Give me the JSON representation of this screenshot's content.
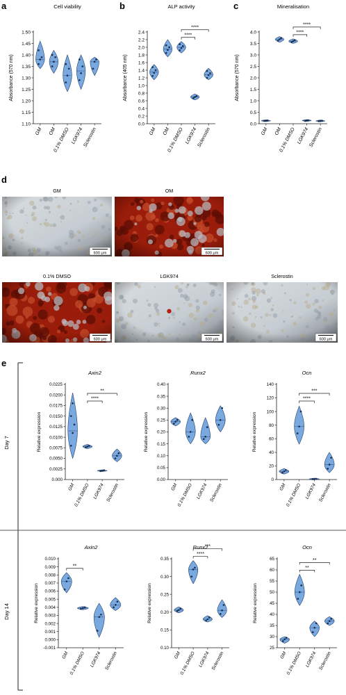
{
  "panel_letters": {
    "a": "a",
    "b": "b",
    "c": "c",
    "d": "d",
    "e": "e"
  },
  "colors": {
    "violin_fill": "#7aa9e0",
    "violin_stroke": "#1f3f70",
    "dot": "#1b2f50",
    "axis": "#222222",
    "alp_red": "#b12010",
    "plain_bg": "#cdd2d6"
  },
  "chart_data": [
    {
      "id": "a",
      "type": "violin",
      "title": "Cell viability",
      "ylabel": "Absorbance (570 nm)",
      "categories": [
        "GM",
        "OM",
        "0.1% DMSO",
        "LGK974",
        "Sclerostin"
      ],
      "ylim": [
        1.1,
        1.5
      ],
      "yticks": [
        1.1,
        1.15,
        1.2,
        1.25,
        1.3,
        1.35,
        1.4,
        1.45,
        1.5
      ],
      "ytick_labels": [
        "1.10",
        "1.15",
        "1.20",
        "1.25",
        "1.30",
        "1.35",
        "1.40",
        "1.45",
        "1.50"
      ],
      "groups": [
        {
          "min": 1.34,
          "max": 1.46,
          "median": 1.38,
          "points": [
            1.36,
            1.38,
            1.39,
            1.42
          ]
        },
        {
          "min": 1.32,
          "max": 1.42,
          "median": 1.37,
          "points": [
            1.35,
            1.37,
            1.39,
            1.4
          ]
        },
        {
          "min": 1.24,
          "max": 1.4,
          "median": 1.31,
          "points": [
            1.28,
            1.31,
            1.34,
            1.36
          ]
        },
        {
          "min": 1.25,
          "max": 1.4,
          "median": 1.33,
          "points": [
            1.29,
            1.32,
            1.35,
            1.38
          ]
        },
        {
          "min": 1.31,
          "max": 1.39,
          "median": 1.37,
          "points": [
            1.34,
            1.37,
            1.38
          ]
        }
      ],
      "brackets": []
    },
    {
      "id": "b",
      "type": "violin",
      "title": "ALP activity",
      "ylabel": "Absorbance (405 nm)",
      "categories": [
        "GM",
        "OM",
        "0.1% DMSO",
        "LGK974",
        "Sclerostin"
      ],
      "ylim": [
        0,
        2.4
      ],
      "yticks": [
        0,
        0.2,
        0.4,
        0.6,
        0.8,
        1.0,
        1.2,
        1.4,
        1.6,
        1.8,
        2.0,
        2.2,
        2.4
      ],
      "ytick_labels": [
        "0.0",
        "0.2",
        "0.4",
        "0.6",
        "0.8",
        "1.0",
        "1.2",
        "1.4",
        "1.6",
        "1.8",
        "2.0",
        "2.2",
        "2.4"
      ],
      "groups": [
        {
          "min": 1.15,
          "max": 1.55,
          "median": 1.35,
          "points": [
            1.25,
            1.33,
            1.4,
            1.48
          ]
        },
        {
          "min": 1.75,
          "max": 2.2,
          "median": 1.95,
          "points": [
            1.85,
            1.93,
            2.0,
            2.05
          ]
        },
        {
          "min": 1.85,
          "max": 2.15,
          "median": 2.0,
          "points": [
            1.92,
            1.98,
            2.03,
            2.08
          ]
        },
        {
          "min": 0.62,
          "max": 0.78,
          "median": 0.7,
          "points": [
            0.67,
            0.7,
            0.72
          ]
        },
        {
          "min": 1.15,
          "max": 1.45,
          "median": 1.28,
          "points": [
            1.2,
            1.27,
            1.32,
            1.38
          ]
        }
      ],
      "brackets": [
        {
          "from": 2,
          "to": 3,
          "label": "****",
          "level": 0
        },
        {
          "from": 2,
          "to": 4,
          "label": "****",
          "level": 1
        }
      ]
    },
    {
      "id": "c",
      "type": "violin",
      "title": "Mineralisation",
      "ylabel": "Absorbance (570 nm)",
      "categories": [
        "GM",
        "OM",
        "0.1% DMSO",
        "LGK974",
        "Sclerostin"
      ],
      "ylim": [
        0,
        4.0
      ],
      "yticks": [
        0,
        0.5,
        1.0,
        1.5,
        2.0,
        2.5,
        3.0,
        3.5,
        4.0
      ],
      "ytick_labels": [
        "0.0",
        "0.5",
        "1.0",
        "1.5",
        "2.0",
        "2.5",
        "3.0",
        "3.5",
        "4.0"
      ],
      "groups": [
        {
          "min": 0.1,
          "max": 0.17,
          "median": 0.13,
          "points": [
            0.12,
            0.13,
            0.14
          ]
        },
        {
          "min": 3.55,
          "max": 3.8,
          "median": 3.68,
          "points": [
            3.62,
            3.68,
            3.73
          ]
        },
        {
          "min": 3.5,
          "max": 3.7,
          "median": 3.6,
          "points": [
            3.56,
            3.6,
            3.64
          ]
        },
        {
          "min": 0.1,
          "max": 0.18,
          "median": 0.14,
          "points": [
            0.12,
            0.14,
            0.15
          ]
        },
        {
          "min": 0.09,
          "max": 0.16,
          "median": 0.12,
          "points": [
            0.11,
            0.12,
            0.13
          ]
        }
      ],
      "brackets": [
        {
          "from": 2,
          "to": 3,
          "label": "****",
          "level": 0
        },
        {
          "from": 2,
          "to": 4,
          "label": "****",
          "level": 1
        }
      ]
    },
    {
      "id": "e7a",
      "type": "violin",
      "title": "Axin2",
      "ylabel": "Relative expression",
      "categories": [
        "GM",
        "0.1% DMSO",
        "LGK974",
        "Sclerostin"
      ],
      "ylim": [
        0,
        0.0225
      ],
      "yticks": [
        0,
        0.0025,
        0.005,
        0.0075,
        0.01,
        0.0125,
        0.015,
        0.0175,
        0.02,
        0.0225
      ],
      "ytick_labels": [
        "0.000",
        "0.0025",
        "0.0050",
        "0.0075",
        "0.0100",
        "0.0125",
        "0.0150",
        "0.0175",
        "0.0200",
        "0.0225"
      ],
      "groups": [
        {
          "min": 0.005,
          "max": 0.0205,
          "median": 0.0115,
          "points": [
            0.008,
            0.011,
            0.013,
            0.015,
            0.018
          ]
        },
        {
          "min": 0.0073,
          "max": 0.0083,
          "median": 0.0078,
          "points": [
            0.0076,
            0.0078,
            0.008
          ]
        },
        {
          "min": 0.0019,
          "max": 0.0023,
          "median": 0.0021,
          "points": [
            0.002,
            0.0021,
            0.0022
          ]
        },
        {
          "min": 0.0042,
          "max": 0.0072,
          "median": 0.0056,
          "points": [
            0.005,
            0.0056,
            0.0062
          ]
        }
      ],
      "brackets": [
        {
          "from": 1,
          "to": 2,
          "label": "****",
          "level": 0
        },
        {
          "from": 1,
          "to": 3,
          "label": "**",
          "level": 1
        }
      ]
    },
    {
      "id": "e7r",
      "type": "violin",
      "title": "Runx2",
      "ylabel": "Relative expression",
      "categories": [
        "GM",
        "0.1% DMSO",
        "LGK974",
        "Sclerostin"
      ],
      "ylim": [
        0,
        0.4
      ],
      "yticks": [
        0,
        0.05,
        0.1,
        0.15,
        0.2,
        0.25,
        0.3,
        0.35,
        0.4
      ],
      "ytick_labels": [
        "0.00",
        "0.05",
        "0.10",
        "0.15",
        "0.20",
        "0.25",
        "0.30",
        "0.35",
        "0.40"
      ],
      "groups": [
        {
          "min": 0.225,
          "max": 0.26,
          "median": 0.243,
          "points": [
            0.235,
            0.243,
            0.25
          ]
        },
        {
          "min": 0.15,
          "max": 0.28,
          "median": 0.2,
          "points": [
            0.18,
            0.2,
            0.25
          ]
        },
        {
          "min": 0.15,
          "max": 0.26,
          "median": 0.18,
          "points": [
            0.17,
            0.18,
            0.22
          ]
        },
        {
          "min": 0.2,
          "max": 0.31,
          "median": 0.25,
          "points": [
            0.23,
            0.25,
            0.3
          ]
        }
      ],
      "brackets": []
    },
    {
      "id": "e7o",
      "type": "violin",
      "title": "Ocn",
      "ylabel": "Relative expression",
      "categories": [
        "GM",
        "0.1% DMSO",
        "LGK974",
        "Sclerostin"
      ],
      "ylim": [
        0,
        140
      ],
      "yticks": [
        0,
        20,
        40,
        60,
        80,
        100,
        120,
        140
      ],
      "ytick_labels": [
        "0",
        "20",
        "40",
        "60",
        "80",
        "100",
        "120",
        "140"
      ],
      "groups": [
        {
          "min": 8,
          "max": 16,
          "median": 12,
          "points": [
            10,
            12,
            14
          ]
        },
        {
          "min": 52,
          "max": 108,
          "median": 78,
          "points": [
            68,
            78,
            100
          ]
        },
        {
          "min": 0.3,
          "max": 1.5,
          "median": 0.8,
          "points": [
            0.5,
            0.8,
            1.1
          ]
        },
        {
          "min": 10,
          "max": 40,
          "median": 22,
          "points": [
            16,
            22,
            32
          ]
        }
      ],
      "brackets": [
        {
          "from": 1,
          "to": 2,
          "label": "****",
          "level": 0
        },
        {
          "from": 1,
          "to": 3,
          "label": "***",
          "level": 1
        }
      ]
    },
    {
      "id": "e14a",
      "type": "violin",
      "title": "Axin2",
      "ylabel": "Relative expression",
      "categories": [
        "GM",
        "0.1% DMSO",
        "LGK974",
        "Sclerostin"
      ],
      "ylim": [
        -0.001,
        0.01
      ],
      "yticks": [
        -0.001,
        0,
        0.001,
        0.002,
        0.003,
        0.004,
        0.005,
        0.006,
        0.007,
        0.008,
        0.009,
        0.01
      ],
      "ytick_labels": [
        "-0.001",
        "0.000",
        "0.001",
        "0.002",
        "0.003",
        "0.004",
        "0.005",
        "0.006",
        "0.007",
        "0.008",
        "0.009",
        "0.010"
      ],
      "groups": [
        {
          "min": 0.0058,
          "max": 0.0083,
          "median": 0.0072,
          "points": [
            0.0062,
            0.0072,
            0.0076
          ]
        },
        {
          "min": 0.0037,
          "max": 0.0041,
          "median": 0.0039,
          "points": [
            0.0038,
            0.0039,
            0.004
          ]
        },
        {
          "min": 0.0003,
          "max": 0.0045,
          "median": 0.0028,
          "points": [
            0.0011,
            0.0028,
            0.0031
          ]
        },
        {
          "min": 0.0036,
          "max": 0.0052,
          "median": 0.0043,
          "points": [
            0.004,
            0.0043,
            0.0047
          ]
        }
      ],
      "brackets": [
        {
          "from": 0,
          "to": 1,
          "label": "**",
          "level": 0
        }
      ]
    },
    {
      "id": "e14r",
      "type": "violin",
      "title": "Runx2",
      "ylabel": "Relative expression",
      "categories": [
        "GM",
        "0.1% DMSO",
        "LGK974",
        "Sclerostin"
      ],
      "ylim": [
        0.1,
        0.35
      ],
      "yticks": [
        0.1,
        0.15,
        0.2,
        0.25,
        0.3,
        0.35
      ],
      "ytick_labels": [
        "0.10",
        "0.15",
        "0.20",
        "0.25",
        "0.30",
        "0.35"
      ],
      "groups": [
        {
          "min": 0.198,
          "max": 0.215,
          "median": 0.206,
          "points": [
            0.203,
            0.206,
            0.21
          ]
        },
        {
          "min": 0.28,
          "max": 0.345,
          "median": 0.32,
          "points": [
            0.3,
            0.32,
            0.325
          ]
        },
        {
          "min": 0.172,
          "max": 0.19,
          "median": 0.18,
          "points": [
            0.176,
            0.18,
            0.185
          ]
        },
        {
          "min": 0.185,
          "max": 0.235,
          "median": 0.205,
          "points": [
            0.195,
            0.205,
            0.22
          ]
        }
      ],
      "brackets": [
        {
          "from": 1,
          "to": 2,
          "label": "****",
          "level": 0
        },
        {
          "from": 1,
          "to": 3,
          "label": "***",
          "level": 1
        }
      ]
    },
    {
      "id": "e14o",
      "type": "violin",
      "title": "Ocn",
      "ylabel": "Relative expression",
      "categories": [
        "GM",
        "0.1% DMSO",
        "LGK974",
        "Sclerostin"
      ],
      "ylim": [
        25,
        65
      ],
      "yticks": [
        25,
        30,
        35,
        40,
        45,
        50,
        55,
        60,
        65
      ],
      "ytick_labels": [
        "25",
        "30",
        "35",
        "40",
        "45",
        "50",
        "55",
        "60",
        "65"
      ],
      "groups": [
        {
          "min": 27,
          "max": 30,
          "median": 28.8,
          "points": [
            28,
            28.8,
            29.5
          ]
        },
        {
          "min": 44,
          "max": 58,
          "median": 50,
          "points": [
            47,
            50,
            53
          ]
        },
        {
          "min": 30,
          "max": 37,
          "median": 34,
          "points": [
            32,
            34,
            36
          ]
        },
        {
          "min": 35,
          "max": 39,
          "median": 37,
          "points": [
            36,
            37,
            38
          ]
        }
      ],
      "brackets": [
        {
          "from": 1,
          "to": 2,
          "label": "**",
          "level": 0
        },
        {
          "from": 1,
          "to": 3,
          "label": "**",
          "level": 1
        }
      ]
    }
  ],
  "images": [
    {
      "label": "GM",
      "scale_bar": "600 μm",
      "stain": "none"
    },
    {
      "label": "OM",
      "scale_bar": "600 μm",
      "stain": "heavy"
    },
    {
      "label": "0.1% DMSO",
      "scale_bar": "600 μm",
      "stain": "heavy"
    },
    {
      "label": "LGK974",
      "scale_bar": "600 μm",
      "stain": "spot"
    },
    {
      "label": "Sclerostin",
      "scale_bar": "600 μm",
      "stain": "none"
    }
  ],
  "rows": {
    "day7": "Day 7",
    "day14": "Day 14"
  }
}
